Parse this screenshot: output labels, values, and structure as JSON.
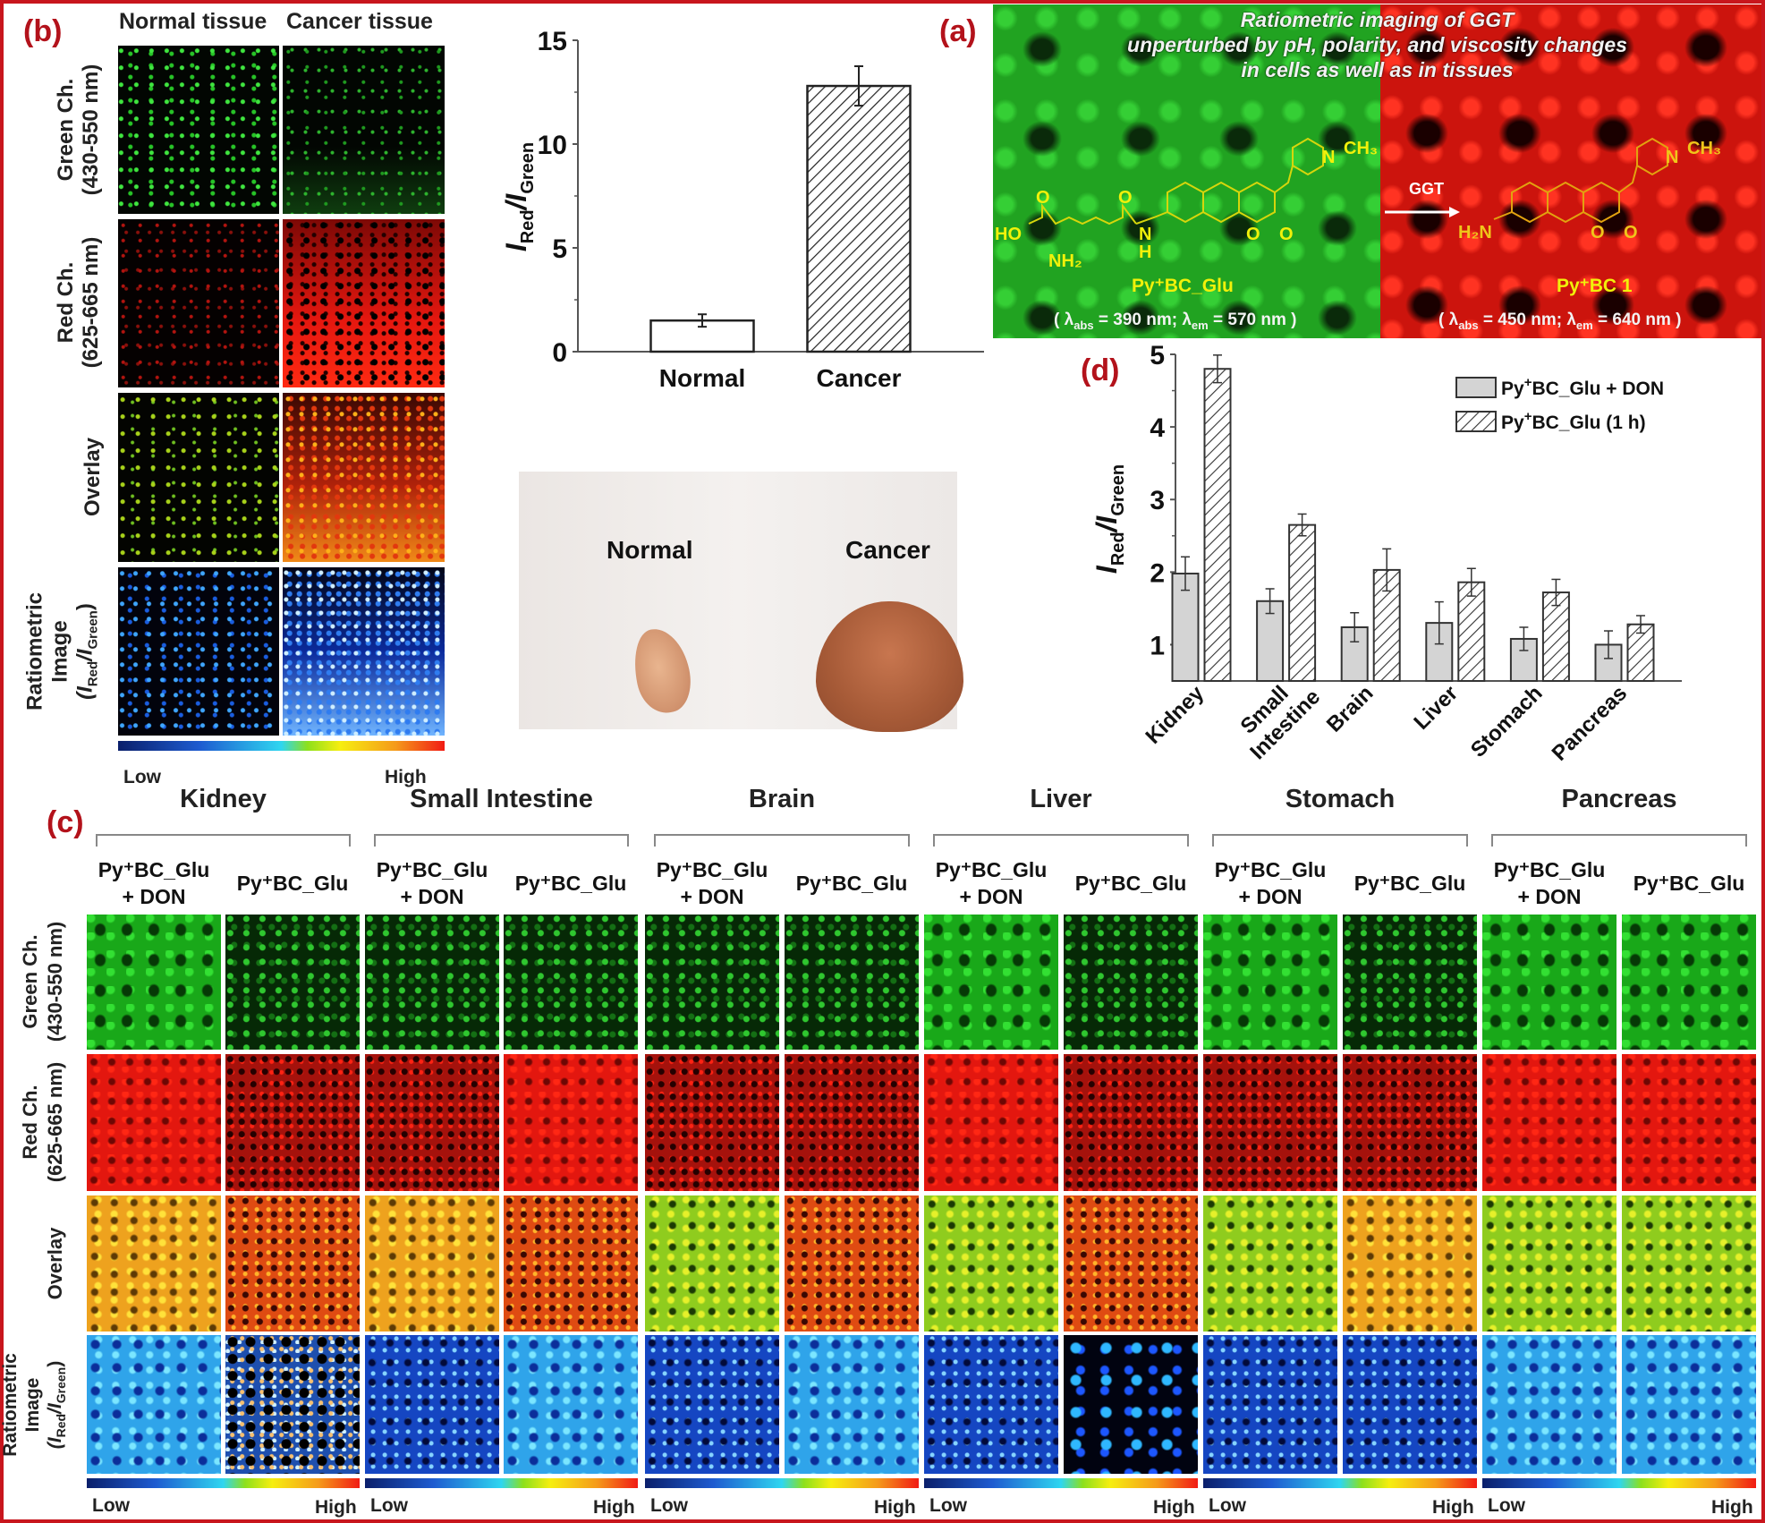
{
  "panels": {
    "a_label": "(a)",
    "b_label": "(b)",
    "c_label": "(c)",
    "d_label": "(d)"
  },
  "panel_b": {
    "col_headers": [
      "Normal tissue",
      "Cancer tissue"
    ],
    "row_labels": [
      {
        "line1": "Green Ch.",
        "line2": "(430-550 nm)"
      },
      {
        "line1": "Red Ch.",
        "line2": "(625-665 nm)"
      },
      {
        "line1": "Overlay",
        "line2": ""
      },
      {
        "line1": "Ratiometric",
        "line2": "Image",
        "line3_main": "(I",
        "line3_sub1": "Red",
        "line3_mid": "/I",
        "line3_sub2": "Green",
        "line3_end": ")"
      }
    ],
    "colorbar_low": "Low",
    "colorbar_high": "High"
  },
  "panel_a": {
    "title_lines": [
      "Ratiometric imaging of GGT",
      "unperturbed by pH, polarity, and viscosity changes",
      "in cells as well as in tissues"
    ],
    "probe_name": "Py⁺BC_Glu",
    "probe_groups": {
      "ho": "HO",
      "nh2": "NH₂",
      "nh": "N",
      "h": "H",
      "o1": "O",
      "o2": "O",
      "o3": "O",
      "o4": "O",
      "n_plus": "N",
      "ch3": "CH₃"
    },
    "product_name": "Py⁺BC 1",
    "product_groups": {
      "h2n": "H₂N",
      "o1": "O",
      "o2": "O",
      "n_plus": "N",
      "ch3": "CH₃"
    },
    "arrow_label": "GGT",
    "probe_lambda": {
      "abs_label": "abs",
      "abs_value": "= 390 nm;",
      "em_label": "em",
      "em_value": "= 570 nm )"
    },
    "product_lambda": {
      "abs_label": "abs",
      "abs_value": "= 450 nm;",
      "em_label": "em",
      "em_value": "= 640 nm )"
    }
  },
  "photo": {
    "normal_label": "Normal",
    "cancer_label": "Cancer"
  },
  "panel_c": {
    "organs": [
      "Kidney",
      "Small Intestine",
      "Brain",
      "Liver",
      "Stomach",
      "Pancreas"
    ],
    "col_label_don_line1": "Py⁺BC_Glu",
    "col_label_don_line2": "+  DON",
    "col_label_plain": "Py⁺BC_Glu",
    "row_labels": [
      {
        "line1": "Green Ch.",
        "line2": "(430-550 nm)"
      },
      {
        "line1": "Red Ch.",
        "line2": "(625-665 nm)"
      },
      {
        "line1": "Overlay",
        "line2": ""
      },
      {
        "line1": "Ratiometric",
        "line2": "Image",
        "line3_main": "(I",
        "line3_sub1": "Red",
        "line3_mid": "/I",
        "line3_sub2": "Green",
        "line3_end": ")"
      }
    ],
    "colorbar_low": "Low",
    "colorbar_high": "High"
  },
  "chart_data": [
    {
      "id": "panel-a-chart",
      "type": "bar",
      "title": "",
      "categories": [
        "Normal",
        "Cancer"
      ],
      "values": [
        1.5,
        12.8
      ],
      "errors": [
        0.3,
        0.95
      ],
      "fills": [
        "none",
        "hatch"
      ],
      "xlabel": "",
      "ylabel": {
        "main": "I",
        "sub1": "Red",
        "mid": "/I",
        "sub2": "Green"
      },
      "ylim": [
        0,
        15
      ],
      "yticks": [
        0,
        5,
        10,
        15
      ],
      "grid": false
    },
    {
      "id": "panel-d-chart",
      "type": "bar",
      "title": "",
      "categories": [
        "Kidney",
        "Small Intestine",
        "Brain",
        "Liver",
        "Stomach",
        "Pancreas"
      ],
      "category_lines": [
        [
          "Kidney"
        ],
        [
          "Small",
          "Intestine"
        ],
        [
          "Brain"
        ],
        [
          "Liver"
        ],
        [
          "Stomach"
        ],
        [
          "Pancreas"
        ]
      ],
      "series": [
        {
          "name": "Py⁺BC_Glu + DON",
          "legend_main": "Py",
          "legend_sup": "+",
          "legend_rest": "BC_Glu + DON",
          "fill": "gray",
          "values": [
            1.98,
            1.6,
            1.24,
            1.3,
            1.08,
            1.0
          ],
          "errors": [
            0.23,
            0.17,
            0.2,
            0.29,
            0.16,
            0.19
          ]
        },
        {
          "name": "Py⁺BC_Glu (1 h)",
          "legend_main": "Py",
          "legend_sup": "+",
          "legend_rest": "BC_Glu (1 h)",
          "fill": "hatch",
          "values": [
            4.8,
            2.65,
            2.03,
            1.86,
            1.72,
            1.28
          ],
          "errors": [
            0.19,
            0.15,
            0.29,
            0.19,
            0.18,
            0.12
          ]
        }
      ],
      "xlabel": "",
      "ylabel": {
        "main": "I",
        "sub1": "Red",
        "mid": "/I",
        "sub2": "Green"
      },
      "ylim": [
        0.5,
        5
      ],
      "yticks": [
        1,
        2,
        3,
        4,
        5
      ],
      "legend": "top-right",
      "grid": false
    }
  ],
  "colors": {
    "panel_label": "#b3121b",
    "frame": "#c8161d",
    "bar_gray": "#d4d4d4",
    "axis": "#555555"
  }
}
